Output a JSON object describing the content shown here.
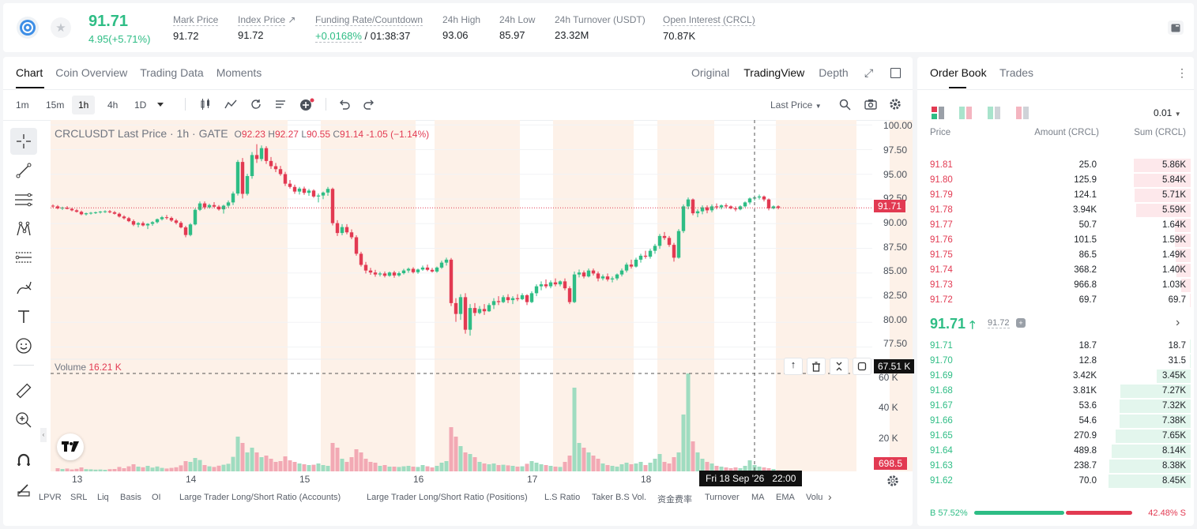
{
  "ticker": {
    "last_price": "91.71",
    "change": "4.95(+5.71%)",
    "stats": [
      {
        "label": "Mark Price",
        "value": "91.72"
      },
      {
        "label": "Index Price",
        "value": "91.72"
      },
      {
        "label": "Funding Rate/Countdown",
        "value_rate": "+0.0168%",
        "value_countdown": "/ 01:38:37"
      },
      {
        "label": "24h High",
        "value": "93.06"
      },
      {
        "label": "24h Low",
        "value": "85.97"
      },
      {
        "label": "24h Turnover (USDT)",
        "value": "23.32M"
      },
      {
        "label": "Open Interest (CRCL)",
        "value": "70.87K"
      }
    ]
  },
  "chart_tabs": [
    "Chart",
    "Coin Overview",
    "Trading Data",
    "Moments"
  ],
  "view_tabs": [
    "Original",
    "TradingView",
    "Depth"
  ],
  "timeframes": [
    "1m",
    "15m",
    "1h",
    "4h",
    "1D"
  ],
  "price_source": "Last Price",
  "legend": {
    "symbol": "CRCLUSDT Last Price · 1h · GATE",
    "o_label": "O",
    "o": "92.23",
    "h_label": "H",
    "h": "92.27",
    "l_label": "L",
    "l": "90.55",
    "c_label": "C",
    "c": "91.14",
    "chg": "-1.05 (−1.14%)"
  },
  "volume_label": "Volume",
  "volume_value": "16.21 K",
  "price_axis": [
    "100.00",
    "97.50",
    "95.00",
    "92.50",
    "90.00",
    "87.50",
    "85.00",
    "82.50",
    "80.00",
    "77.50"
  ],
  "volume_axis": [
    "60 K",
    "40 K",
    "20 K"
  ],
  "last_price_tag": "91.71",
  "crosshair_vol_tag": "67.51 K",
  "last_vol_tag": "698.5",
  "date_axis": [
    "13",
    "14",
    "15",
    "16",
    "17",
    "18"
  ],
  "crosshair_time": "Fri 18 Sep '26   22:00",
  "indicators": [
    "LPVR",
    "SRL",
    "Liq",
    "Basis",
    "OI",
    "Large Trader Long/Short Ratio (Accounts)",
    "Large Trader Long/Short Ratio (Positions)",
    "L.S Ratio",
    "Taker B.S Vol.",
    "资金费率",
    "Turnover",
    "MA",
    "EMA",
    "Volu"
  ],
  "orderbook": {
    "tabs": [
      "Order Book",
      "Trades"
    ],
    "precision": "0.01",
    "headers": [
      "Price",
      "Amount (CRCL)",
      "Sum (CRCL)"
    ],
    "asks": [
      {
        "price": "91.81",
        "amount": "25.0",
        "sum": "5.86K",
        "depth": 0.69
      },
      {
        "price": "91.80",
        "amount": "125.9",
        "sum": "5.84K",
        "depth": 0.69
      },
      {
        "price": "91.79",
        "amount": "124.1",
        "sum": "5.71K",
        "depth": 0.68
      },
      {
        "price": "91.78",
        "amount": "3.94K",
        "sum": "5.59K",
        "depth": 0.66
      },
      {
        "price": "91.77",
        "amount": "50.7",
        "sum": "1.64K",
        "depth": 0.19
      },
      {
        "price": "91.76",
        "amount": "101.5",
        "sum": "1.59K",
        "depth": 0.19
      },
      {
        "price": "91.75",
        "amount": "86.5",
        "sum": "1.49K",
        "depth": 0.18
      },
      {
        "price": "91.74",
        "amount": "368.2",
        "sum": "1.40K",
        "depth": 0.17
      },
      {
        "price": "91.73",
        "amount": "966.8",
        "sum": "1.03K",
        "depth": 0.12
      },
      {
        "price": "91.72",
        "amount": "69.7",
        "sum": "69.7",
        "depth": 0.01
      }
    ],
    "mid_price": "91.71",
    "mid_mark": "91.72",
    "bids": [
      {
        "price": "91.71",
        "amount": "18.7",
        "sum": "18.7",
        "depth": 0.01
      },
      {
        "price": "91.70",
        "amount": "12.8",
        "sum": "31.5",
        "depth": 0.01
      },
      {
        "price": "91.69",
        "amount": "3.42K",
        "sum": "3.45K",
        "depth": 0.41
      },
      {
        "price": "91.68",
        "amount": "3.81K",
        "sum": "7.27K",
        "depth": 0.86
      },
      {
        "price": "91.67",
        "amount": "53.6",
        "sum": "7.32K",
        "depth": 0.87
      },
      {
        "price": "91.66",
        "amount": "54.6",
        "sum": "7.38K",
        "depth": 0.87
      },
      {
        "price": "91.65",
        "amount": "270.9",
        "sum": "7.65K",
        "depth": 0.91
      },
      {
        "price": "91.64",
        "amount": "489.8",
        "sum": "8.14K",
        "depth": 0.96
      },
      {
        "price": "91.63",
        "amount": "238.7",
        "sum": "8.38K",
        "depth": 0.99
      },
      {
        "price": "91.62",
        "amount": "70.0",
        "sum": "8.45K",
        "depth": 1.0
      }
    ],
    "buy_label": "B 57.52%",
    "sell_label": "42.48% S",
    "buy_ratio": 0.5752
  },
  "colors": {
    "up": "#2ebd85",
    "down": "#e23a52",
    "session": "#fdf1e8"
  },
  "chart_data": {
    "type": "candlestick",
    "title": "CRCLUSDT Last Price · 1h · GATE",
    "ylim": [
      76.5,
      100.5
    ],
    "volume_ylim": [
      0,
      70000
    ],
    "x_ticks": [
      "13",
      "14",
      "15",
      "16",
      "17",
      "18"
    ],
    "candles": [
      [
        91.82,
        91.95,
        91.62,
        91.75,
        0
      ],
      [
        91.75,
        91.88,
        91.45,
        91.55,
        2000
      ],
      [
        91.55,
        91.72,
        91.38,
        91.62,
        1500
      ],
      [
        91.62,
        91.78,
        91.45,
        91.5,
        1800
      ],
      [
        91.5,
        91.62,
        91.25,
        91.35,
        1200
      ],
      [
        91.35,
        91.48,
        91.12,
        91.2,
        1600
      ],
      [
        91.2,
        91.32,
        90.85,
        90.95,
        2500
      ],
      [
        90.95,
        91.12,
        90.82,
        91.05,
        1400
      ],
      [
        91.05,
        91.18,
        90.92,
        91.1,
        1300
      ],
      [
        91.1,
        91.22,
        90.98,
        91.15,
        1100
      ],
      [
        91.15,
        91.28,
        91.02,
        91.22,
        1200
      ],
      [
        91.22,
        91.35,
        91.08,
        91.25,
        1000
      ],
      [
        91.25,
        91.38,
        91.05,
        91.15,
        1400
      ],
      [
        91.15,
        91.28,
        90.92,
        91.0,
        1500
      ],
      [
        91.0,
        91.12,
        90.62,
        90.72,
        2800
      ],
      [
        90.72,
        90.85,
        90.42,
        90.55,
        2000
      ],
      [
        90.55,
        90.68,
        90.15,
        90.25,
        3200
      ],
      [
        90.25,
        90.42,
        89.75,
        89.9,
        4500
      ],
      [
        89.9,
        90.15,
        89.62,
        90.05,
        3000
      ],
      [
        90.05,
        90.22,
        89.72,
        89.82,
        2600
      ],
      [
        89.82,
        90.05,
        89.45,
        89.98,
        3500
      ],
      [
        89.98,
        90.25,
        89.78,
        90.15,
        2400
      ],
      [
        90.15,
        90.52,
        90.02,
        90.45,
        3100
      ],
      [
        90.45,
        90.78,
        90.32,
        90.65,
        2200
      ],
      [
        90.65,
        90.88,
        90.42,
        90.58,
        1800
      ],
      [
        90.58,
        90.72,
        90.18,
        90.32,
        2200
      ],
      [
        90.32,
        90.48,
        89.92,
        90.08,
        2600
      ],
      [
        90.08,
        90.25,
        89.52,
        89.62,
        3800
      ],
      [
        89.62,
        89.78,
        88.62,
        88.85,
        6500
      ],
      [
        88.85,
        90.05,
        88.72,
        89.92,
        6000
      ],
      [
        89.92,
        91.55,
        89.82,
        91.4,
        8500
      ],
      [
        91.4,
        92.25,
        91.28,
        92.05,
        7200
      ],
      [
        92.05,
        92.25,
        91.45,
        91.65,
        4000
      ],
      [
        91.65,
        92.02,
        91.52,
        91.88,
        3200
      ],
      [
        91.88,
        92.18,
        91.58,
        91.72,
        2800
      ],
      [
        91.72,
        91.88,
        91.32,
        91.45,
        3600
      ],
      [
        91.45,
        91.92,
        91.02,
        91.82,
        4200
      ],
      [
        91.82,
        92.35,
        91.62,
        92.15,
        4800
      ],
      [
        92.15,
        93.25,
        91.88,
        93.05,
        9200
      ],
      [
        93.05,
        96.45,
        92.85,
        96.25,
        22000
      ],
      [
        96.25,
        96.65,
        92.55,
        93.02,
        18000
      ],
      [
        93.02,
        95.05,
        92.85,
        94.82,
        12000
      ],
      [
        94.82,
        97.25,
        94.55,
        96.95,
        15000
      ],
      [
        96.95,
        98.05,
        96.15,
        96.55,
        12000
      ],
      [
        96.55,
        97.92,
        96.32,
        97.65,
        9000
      ],
      [
        97.65,
        97.85,
        96.05,
        96.35,
        10000
      ],
      [
        96.35,
        96.75,
        95.55,
        95.82,
        8000
      ],
      [
        95.82,
        96.15,
        95.22,
        95.52,
        6000
      ],
      [
        95.52,
        95.85,
        94.85,
        95.02,
        6500
      ],
      [
        95.02,
        95.25,
        93.82,
        94.05,
        9500
      ],
      [
        94.05,
        94.42,
        93.55,
        93.72,
        7000
      ],
      [
        93.72,
        93.95,
        93.02,
        93.25,
        6000
      ],
      [
        93.25,
        93.72,
        92.95,
        93.55,
        5000
      ],
      [
        93.55,
        93.75,
        92.92,
        93.12,
        4500
      ],
      [
        93.12,
        93.52,
        92.82,
        93.35,
        4000
      ],
      [
        93.35,
        93.48,
        92.62,
        92.75,
        4200
      ],
      [
        92.75,
        93.05,
        92.15,
        92.85,
        5000
      ],
      [
        92.85,
        93.25,
        92.48,
        93.15,
        4000
      ],
      [
        93.15,
        93.72,
        92.82,
        93.52,
        3500
      ],
      [
        93.52,
        93.65,
        89.82,
        90.05,
        18000
      ],
      [
        90.05,
        90.35,
        88.75,
        89.05,
        15000
      ],
      [
        89.05,
        89.95,
        88.82,
        89.65,
        8000
      ],
      [
        89.65,
        89.95,
        88.92,
        89.12,
        6000
      ],
      [
        89.12,
        89.42,
        88.42,
        88.62,
        9000
      ],
      [
        88.62,
        88.82,
        86.75,
        86.95,
        14000
      ],
      [
        86.95,
        87.15,
        85.65,
        85.82,
        12000
      ],
      [
        85.82,
        86.12,
        84.95,
        85.25,
        8000
      ],
      [
        85.25,
        85.52,
        84.82,
        85.05,
        6000
      ],
      [
        85.05,
        85.32,
        84.62,
        84.85,
        5500
      ],
      [
        84.85,
        85.12,
        84.65,
        84.95,
        3500
      ],
      [
        84.95,
        85.15,
        84.55,
        84.72,
        4000
      ],
      [
        84.72,
        85.15,
        84.62,
        85.05,
        3000
      ],
      [
        85.05,
        85.22,
        84.52,
        84.75,
        3000
      ],
      [
        84.75,
        85.15,
        84.62,
        84.98,
        2800
      ],
      [
        84.98,
        85.42,
        84.85,
        85.25,
        3200
      ],
      [
        85.25,
        85.55,
        85.02,
        85.42,
        3500
      ],
      [
        85.42,
        85.58,
        84.95,
        85.08,
        3000
      ],
      [
        85.08,
        85.45,
        84.92,
        85.35,
        2800
      ],
      [
        85.35,
        85.75,
        85.22,
        85.55,
        4000
      ],
      [
        85.55,
        85.85,
        85.18,
        85.32,
        3200
      ],
      [
        85.32,
        85.52,
        85.05,
        85.15,
        2500
      ],
      [
        85.15,
        85.65,
        85.02,
        85.55,
        3500
      ],
      [
        85.55,
        86.25,
        85.42,
        86.05,
        5500
      ],
      [
        86.05,
        86.55,
        85.75,
        86.35,
        6500
      ],
      [
        86.35,
        86.52,
        81.65,
        81.95,
        28000
      ],
      [
        81.95,
        82.45,
        80.05,
        80.85,
        22000
      ],
      [
        80.85,
        82.85,
        80.25,
        82.55,
        16000
      ],
      [
        82.55,
        82.95,
        78.85,
        79.25,
        12000
      ],
      [
        79.25,
        81.85,
        78.65,
        81.45,
        11000
      ],
      [
        81.45,
        81.95,
        80.65,
        80.95,
        9000
      ],
      [
        80.95,
        81.65,
        80.82,
        81.35,
        6000
      ],
      [
        81.35,
        81.85,
        80.75,
        81.12,
        5000
      ],
      [
        81.12,
        81.95,
        81.05,
        81.75,
        4500
      ],
      [
        81.75,
        82.45,
        81.35,
        82.15,
        5000
      ],
      [
        82.15,
        82.65,
        81.75,
        82.05,
        4000
      ],
      [
        82.05,
        82.75,
        81.95,
        82.55,
        4200
      ],
      [
        82.55,
        82.85,
        81.95,
        82.25,
        3800
      ],
      [
        82.25,
        82.65,
        81.85,
        82.45,
        3500
      ],
      [
        82.45,
        82.85,
        82.15,
        82.35,
        3000
      ],
      [
        82.35,
        82.95,
        82.25,
        82.75,
        3200
      ],
      [
        82.75,
        82.85,
        81.75,
        82.05,
        4800
      ],
      [
        82.05,
        83.15,
        81.95,
        82.95,
        6500
      ],
      [
        82.95,
        83.85,
        82.65,
        83.65,
        5500
      ],
      [
        83.65,
        84.15,
        83.25,
        83.85,
        4500
      ],
      [
        83.85,
        84.35,
        83.45,
        83.65,
        4000
      ],
      [
        83.65,
        84.25,
        83.45,
        84.05,
        3500
      ],
      [
        84.05,
        84.45,
        83.65,
        83.85,
        3000
      ],
      [
        83.85,
        84.25,
        83.65,
        84.15,
        2800
      ],
      [
        84.15,
        84.45,
        83.25,
        83.45,
        6000
      ],
      [
        83.45,
        83.65,
        81.85,
        82.05,
        10000
      ],
      [
        82.05,
        85.15,
        81.95,
        84.85,
        53000
      ],
      [
        84.85,
        85.35,
        84.55,
        85.05,
        18000
      ],
      [
        85.05,
        85.25,
        84.45,
        84.65,
        15000
      ],
      [
        84.65,
        85.45,
        84.55,
        85.25,
        12000
      ],
      [
        85.25,
        85.45,
        84.75,
        84.95,
        10000
      ],
      [
        84.95,
        85.15,
        84.15,
        84.45,
        8000
      ],
      [
        84.45,
        84.85,
        84.25,
        84.65,
        5000
      ],
      [
        84.65,
        84.95,
        84.15,
        84.35,
        4000
      ],
      [
        84.35,
        84.65,
        84.05,
        84.45,
        3500
      ],
      [
        84.45,
        84.95,
        84.25,
        84.85,
        3000
      ],
      [
        84.85,
        85.45,
        84.65,
        85.25,
        4500
      ],
      [
        85.25,
        86.05,
        85.05,
        85.85,
        5500
      ],
      [
        85.85,
        86.35,
        85.45,
        85.65,
        4500
      ],
      [
        85.65,
        86.55,
        85.55,
        86.35,
        5000
      ],
      [
        86.35,
        86.95,
        86.05,
        86.75,
        6000
      ],
      [
        86.75,
        87.25,
        86.45,
        86.65,
        4000
      ],
      [
        86.65,
        87.45,
        86.45,
        87.25,
        5500
      ],
      [
        87.25,
        87.95,
        86.95,
        87.75,
        8000
      ],
      [
        87.75,
        88.95,
        87.45,
        88.75,
        11000
      ],
      [
        88.75,
        89.15,
        88.35,
        88.55,
        6000
      ],
      [
        88.55,
        88.75,
        87.65,
        87.85,
        5000
      ],
      [
        87.85,
        88.05,
        86.15,
        86.55,
        9000
      ],
      [
        86.55,
        89.45,
        86.45,
        89.25,
        12000
      ],
      [
        89.25,
        91.95,
        89.05,
        91.75,
        36000
      ],
      [
        91.75,
        92.65,
        91.45,
        92.45,
        62000
      ],
      [
        92.45,
        92.55,
        90.85,
        91.05,
        19000
      ],
      [
        91.05,
        91.45,
        90.65,
        91.25,
        12000
      ],
      [
        91.25,
        91.85,
        90.95,
        91.65,
        8000
      ],
      [
        91.65,
        91.85,
        91.05,
        91.35,
        6000
      ],
      [
        91.35,
        91.95,
        91.15,
        91.75,
        5000
      ],
      [
        91.75,
        92.05,
        91.45,
        91.65,
        3500
      ],
      [
        91.65,
        91.95,
        91.45,
        91.85,
        3000
      ],
      [
        91.85,
        92.05,
        91.55,
        91.75,
        2500
      ],
      [
        91.75,
        91.85,
        91.45,
        91.55,
        2000
      ],
      [
        91.55,
        91.75,
        91.25,
        91.45,
        2500
      ],
      [
        91.45,
        91.85,
        91.35,
        91.75,
        2000
      ],
      [
        91.75,
        92.25,
        91.65,
        92.15,
        3500
      ],
      [
        92.15,
        92.65,
        91.95,
        92.55,
        7000
      ],
      [
        92.55,
        92.85,
        92.35,
        92.65,
        4000
      ],
      [
        92.65,
        92.95,
        92.45,
        92.75,
        3000
      ],
      [
        92.75,
        92.85,
        92.25,
        92.45,
        2500
      ],
      [
        92.45,
        92.55,
        91.35,
        91.55,
        2000
      ],
      [
        91.55,
        91.85,
        91.45,
        91.75,
        1500
      ],
      [
        91.75,
        91.85,
        91.45,
        91.6,
        700
      ]
    ]
  }
}
